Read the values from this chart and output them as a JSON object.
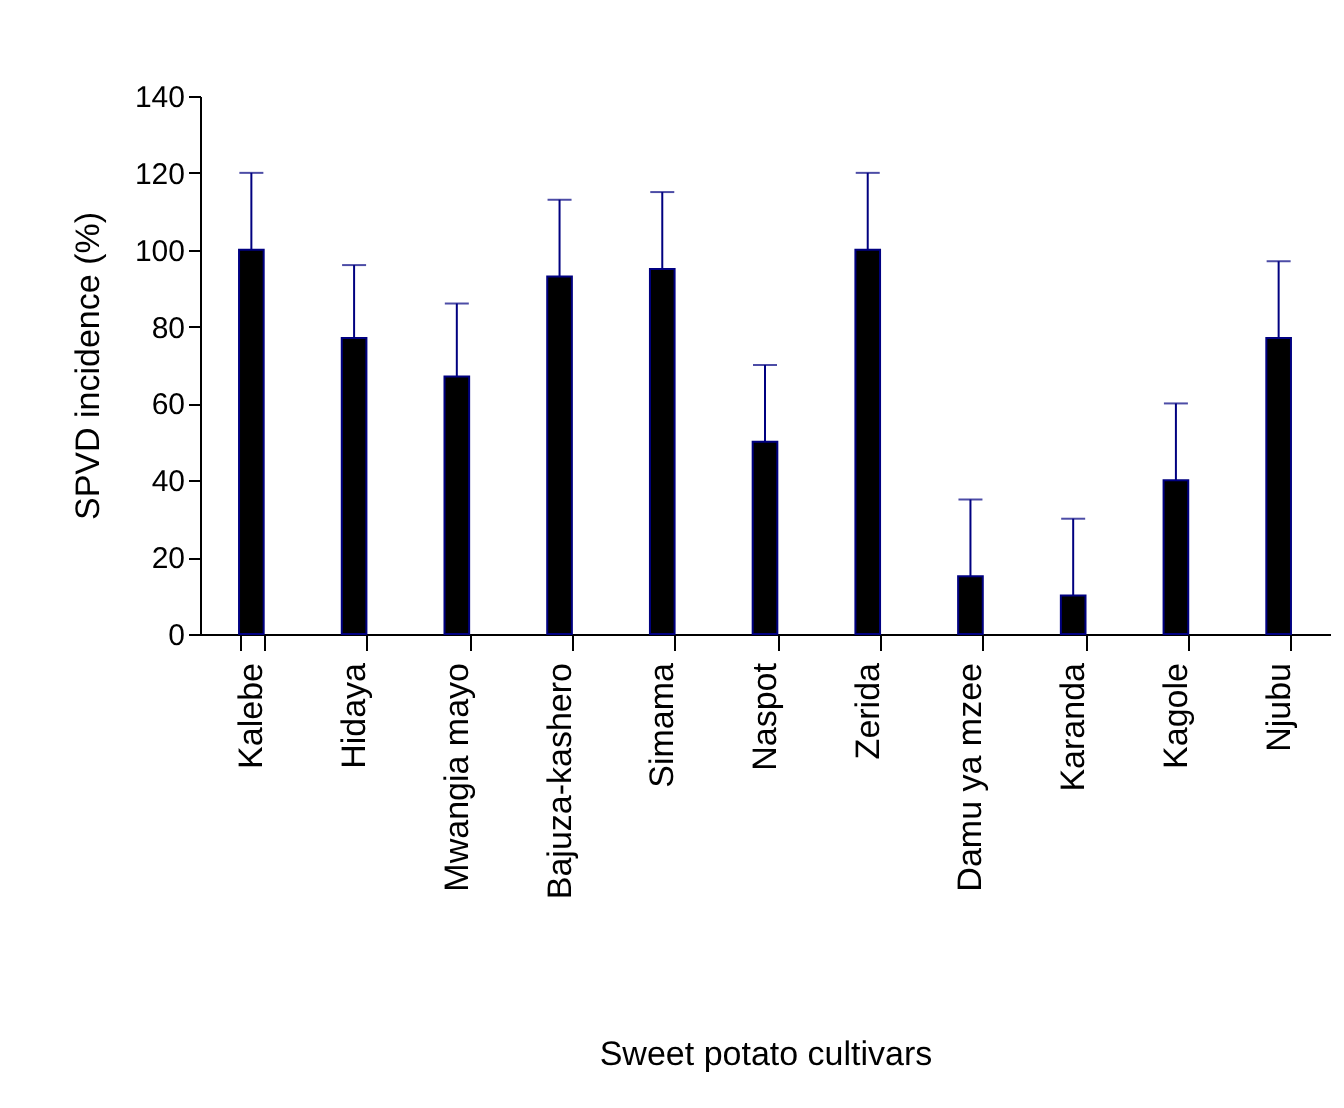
{
  "chart_data": {
    "type": "bar",
    "xlabel": "Sweet potato cultivars",
    "ylabel": "SPVD incidence (%)",
    "categories": [
      "Kalebe",
      "Hidaya",
      "Mwangia mayo",
      "Bajuza-kashero",
      "Simama",
      "Naspot",
      "Zerida",
      "Damu ya mzee",
      "Karanda",
      "Kagole",
      "Njubu"
    ],
    "values": [
      100,
      77,
      67,
      93,
      95,
      50,
      100,
      15,
      10,
      40,
      77
    ],
    "errors": [
      [
        100,
        120
      ],
      [
        77,
        96
      ],
      [
        67,
        86
      ],
      [
        93,
        113
      ],
      [
        95,
        115
      ],
      [
        50,
        70
      ],
      [
        100,
        120
      ],
      [
        15,
        35
      ],
      [
        10,
        30
      ],
      [
        40,
        60
      ],
      [
        77,
        97
      ]
    ],
    "color": "#000000",
    "ylim": [
      0,
      140
    ],
    "yticks": [
      0,
      20,
      40,
      60,
      80,
      100,
      120,
      140
    ],
    "grid": false
  }
}
